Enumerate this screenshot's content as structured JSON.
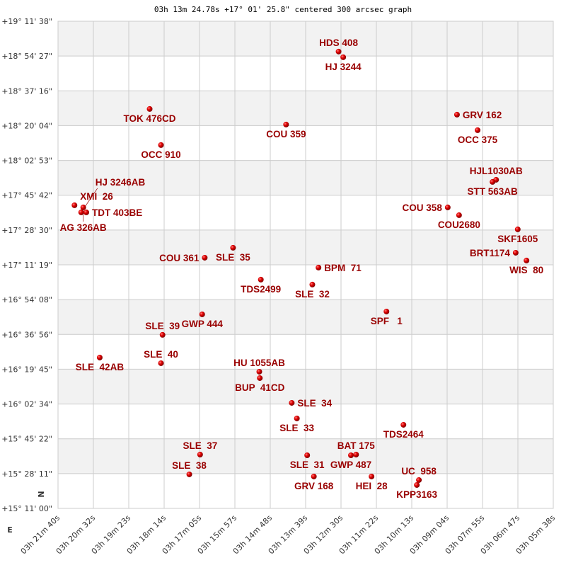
{
  "chart_data": {
    "type": "scatter",
    "title": "03h 13m 24.78s +17° 01' 25.8\" centered 300 arcsec graph",
    "xlabel": "",
    "ylabel": "",
    "xlim": [
      "03h 21m 40s",
      "03h 05m 38s"
    ],
    "ylim": [
      "+15° 11' 00\"",
      "+19° 11' 38\""
    ],
    "grid": true,
    "x_ticks": [
      "03h 21m 40s",
      "03h 20m 32s",
      "03h 19m 23s",
      "03h 18m 14s",
      "03h 17m 05s",
      "03h 15m 57s",
      "03h 14m 48s",
      "03h 13m 39s",
      "03h 12m 30s",
      "03h 11m 22s",
      "03h 10m 13s",
      "03h 09m 04s",
      "03h 07m 55s",
      "03h 06m 47s",
      "03h 05m 38s"
    ],
    "y_ticks": [
      "+19° 11' 38\"",
      "+18° 54' 27\"",
      "+18° 37' 16\"",
      "+18° 20' 04\"",
      "+18° 02' 53\"",
      "+17° 45' 42\"",
      "+17° 28' 30\"",
      "+17° 11' 19\"",
      "+16° 54' 08\"",
      "+16° 36' 56\"",
      "+16° 19' 45\"",
      "+16° 02' 34\"",
      "+15° 45' 22\"",
      "+15° 28' 11\"",
      "+15° 11' 00\""
    ],
    "compass": {
      "north": "N",
      "east": "E"
    },
    "colors": {
      "point": "#cc0000",
      "label": "#990000",
      "band": "#f2f2f2",
      "grid": "#cccccc"
    },
    "points": [
      {
        "name": "HDS 408",
        "ra": "03h 12m 35s",
        "dec": "+18° 56' 39\""
      },
      {
        "name": "HJ 3244",
        "ra": "03h 12m 26s",
        "dec": "+18° 53' 51\""
      },
      {
        "name": "TOK 476CD",
        "ra": "03h 18m 42s",
        "dec": "+18° 28' 18\""
      },
      {
        "name": "COU 359",
        "ra": "03h 14m 17s",
        "dec": "+18° 20' 37\""
      },
      {
        "name": "GRV 162",
        "ra": "03h 08m 45s",
        "dec": "+18° 25' 30\""
      },
      {
        "name": "OCC 375",
        "ra": "03h 08m 05s",
        "dec": "+18° 17' 49\""
      },
      {
        "name": "OCC 910",
        "ra": "03h 18m 20s",
        "dec": "+18° 10' 28\""
      },
      {
        "name": "HJL1030AB",
        "ra": "03h 07m 29s",
        "dec": "+17° 53' 19\""
      },
      {
        "name": "STT 563AB",
        "ra": "03h 07m 36s",
        "dec": "+17° 52' 16\""
      },
      {
        "name": "COU 358",
        "ra": "03h 09m 03s",
        "dec": "+17° 39' 41\""
      },
      {
        "name": "COU2680",
        "ra": "03h 08m 41s",
        "dec": "+17° 35' 50\""
      },
      {
        "name": "SKF1605",
        "ra": "03h 06m 47s",
        "dec": "+17° 28' 50\""
      },
      {
        "name": "BRT1174",
        "ra": "03h 06m 51s",
        "dec": "+17° 17' 17\""
      },
      {
        "name": "WIS  80",
        "ra": "03h 06m 30s",
        "dec": "+17° 13' 27\""
      },
      {
        "name": "XMI  26",
        "ra": "03h 21m 08s",
        "dec": "+17° 40' 44\""
      },
      {
        "name": "AG 326AB",
        "ra": "03h 20m 51s",
        "dec": "+17° 39' 41\""
      },
      {
        "name": "HJ 3246AB",
        "ra": "03h 20m 55s",
        "dec": "+17° 37' 14\""
      },
      {
        "name": "TDT 403BE",
        "ra": "03h 20m 45s",
        "dec": "+17° 37' 14\""
      },
      {
        "name": "SLE  35",
        "ra": "03h 16m 00s",
        "dec": "+17° 19' 44\""
      },
      {
        "name": "COU 361",
        "ra": "03h 16m 55s",
        "dec": "+17° 14' 50\""
      },
      {
        "name": "BPM  71",
        "ra": "03h 13m 14s",
        "dec": "+17° 09' 57\""
      },
      {
        "name": "TDS2499",
        "ra": "03h 15m 06s",
        "dec": "+17° 04' 00\""
      },
      {
        "name": "SLE  32",
        "ra": "03h 13m 26s",
        "dec": "+17° 01' 33\""
      },
      {
        "name": "SPF   1",
        "ra": "03h 11m 02s",
        "dec": "+16° 48' 15\""
      },
      {
        "name": "GWP 444",
        "ra": "03h 17m 00s",
        "dec": "+16° 46' 51\""
      },
      {
        "name": "SLE  39",
        "ra": "03h 18m 17s",
        "dec": "+16° 36' 43\""
      },
      {
        "name": "SLE  42AB",
        "ra": "03h 20m 19s",
        "dec": "+16° 25' 31\""
      },
      {
        "name": "SLE  40",
        "ra": "03h 18m 20s",
        "dec": "+16° 22' 43\""
      },
      {
        "name": "HU 1055AB",
        "ra": "03h 15m 09s",
        "dec": "+16° 18' 31\""
      },
      {
        "name": "BUP  41CD",
        "ra": "03h 15m 08s",
        "dec": "+16° 15' 22\""
      },
      {
        "name": "SLE  34",
        "ra": "03h 14m 06s",
        "dec": "+16° 03' 08\""
      },
      {
        "name": "SLE  33",
        "ra": "03h 13m 56s",
        "dec": "+15° 55' 26\""
      },
      {
        "name": "TDS2464",
        "ra": "03h 10m 29s",
        "dec": "+15° 52' 17\""
      },
      {
        "name": "SLE  37",
        "ra": "03h 17m 04s",
        "dec": "+15° 37' 35\""
      },
      {
        "name": "SLE  38",
        "ra": "03h 17m 25s",
        "dec": "+15° 27' 48\""
      },
      {
        "name": "SLE  31",
        "ra": "03h 13m 36s",
        "dec": "+15° 37' 14\""
      },
      {
        "name": "GWP 487",
        "ra": "03h 12m 11s",
        "dec": "+15° 37' 14\""
      },
      {
        "name": "BAT 175",
        "ra": "03h 12m 01s",
        "dec": "+15° 37' 35\""
      },
      {
        "name": "GRV 168",
        "ra": "03h 13m 23s",
        "dec": "+15° 26' 45\""
      },
      {
        "name": "HEI  28",
        "ra": "03h 11m 31s",
        "dec": "+15° 26' 45\""
      },
      {
        "name": "UC  958",
        "ra": "03h 09m 59s",
        "dec": "+15° 25' 00\""
      },
      {
        "name": "KPP3163",
        "ra": "03h 10m 03s",
        "dec": "+15° 22' 33\""
      }
    ]
  }
}
